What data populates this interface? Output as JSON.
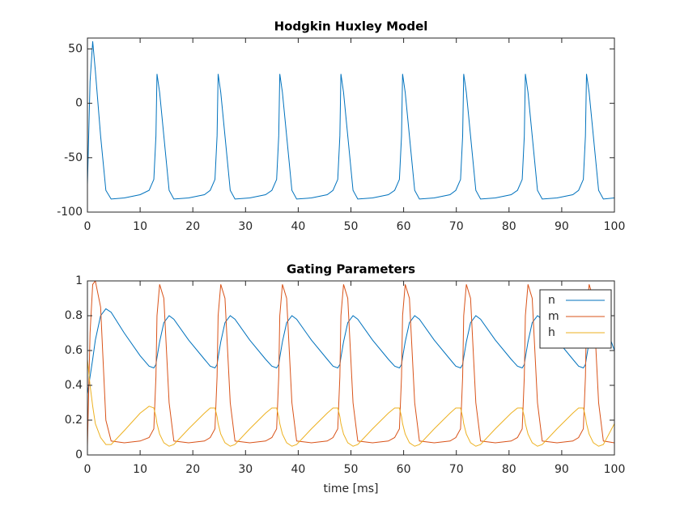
{
  "chart_data": [
    {
      "type": "line",
      "title": "Hodgkin Huxley Model",
      "x": [
        0,
        0.5,
        1,
        1.5,
        2.5,
        3.5,
        4.5,
        7,
        10,
        11.7,
        12.6,
        13.0,
        13.2,
        13.7,
        14.5,
        15.5,
        16.4,
        19.2,
        22.2,
        23.3,
        24.2,
        24.6,
        24.8,
        25.3,
        26.1,
        27.1,
        28.0,
        30.8,
        33.8,
        35.0,
        35.9,
        36.3,
        36.5,
        37.0,
        37.8,
        38.8,
        39.7,
        42.5,
        45.5,
        46.6,
        47.5,
        47.9,
        48.1,
        48.6,
        49.4,
        50.4,
        51.3,
        54.1,
        57.1,
        58.3,
        59.2,
        59.6,
        59.8,
        60.3,
        61.1,
        62.1,
        63.0,
        65.8,
        68.8,
        69.9,
        70.8,
        71.2,
        71.4,
        71.9,
        72.7,
        73.7,
        74.6,
        77.4,
        80.4,
        81.6,
        82.5,
        82.9,
        83.1,
        83.6,
        84.4,
        85.4,
        86.3,
        89.1,
        92.1,
        93.2,
        94.1,
        94.5,
        94.7,
        95.2,
        96.0,
        97.0,
        97.9,
        100
      ],
      "series": [
        {
          "color": "#0072BD",
          "values": [
            -75,
            20,
            57,
            30,
            -30,
            -80,
            -88,
            -87,
            -84,
            -80,
            -70,
            -30,
            27,
            10,
            -30,
            -80,
            -88,
            -87,
            -84,
            -80,
            -70,
            -30,
            27,
            10,
            -30,
            -80,
            -88,
            -87,
            -84,
            -80,
            -70,
            -30,
            27,
            10,
            -30,
            -80,
            -88,
            -87,
            -84,
            -80,
            -70,
            -30,
            27,
            10,
            -30,
            -80,
            -88,
            -87,
            -84,
            -80,
            -70,
            -30,
            27,
            10,
            -30,
            -80,
            -88,
            -87,
            -84,
            -80,
            -70,
            -30,
            27,
            10,
            -30,
            -80,
            -88,
            -87,
            -84,
            -80,
            -70,
            -30,
            27,
            10,
            -30,
            -80,
            -88,
            -87,
            -84,
            -80,
            -70,
            -30,
            27,
            10,
            -30,
            -80,
            -88,
            -87
          ]
        }
      ],
      "xlim": [
        0,
        100
      ],
      "xticks": [
        0,
        10,
        20,
        30,
        40,
        50,
        60,
        70,
        80,
        90,
        100
      ],
      "ylim": [
        -100,
        60
      ],
      "yticks": [
        -100,
        -50,
        0,
        50
      ]
    },
    {
      "type": "line",
      "title": "Gating Parameters",
      "xlabel": "time [ms]",
      "x": [
        0,
        0.5,
        1,
        1.5,
        2.5,
        3.5,
        4.5,
        7,
        10,
        11.7,
        12.6,
        13.0,
        13.2,
        13.7,
        14.5,
        15.5,
        16.4,
        19.2,
        22.2,
        23.3,
        24.2,
        24.6,
        24.8,
        25.3,
        26.1,
        27.1,
        28.0,
        30.8,
        33.8,
        35.0,
        35.9,
        36.3,
        36.5,
        37.0,
        37.8,
        38.8,
        39.7,
        42.5,
        45.5,
        46.6,
        47.5,
        47.9,
        48.1,
        48.6,
        49.4,
        50.4,
        51.3,
        54.1,
        57.1,
        58.3,
        59.2,
        59.6,
        59.8,
        60.3,
        61.1,
        62.1,
        63.0,
        65.8,
        68.8,
        69.9,
        70.8,
        71.2,
        71.4,
        71.9,
        72.7,
        73.7,
        74.6,
        77.4,
        80.4,
        81.6,
        82.5,
        82.9,
        83.1,
        83.6,
        84.4,
        85.4,
        86.3,
        89.1,
        92.1,
        93.2,
        94.1,
        94.5,
        94.7,
        95.2,
        96.0,
        97.0,
        97.9,
        100
      ],
      "series": [
        {
          "name": "n",
          "color": "#0072BD",
          "values": [
            0.35,
            0.45,
            0.55,
            0.66,
            0.8,
            0.84,
            0.82,
            0.7,
            0.57,
            0.51,
            0.5,
            0.52,
            0.56,
            0.65,
            0.76,
            0.8,
            0.78,
            0.66,
            0.55,
            0.51,
            0.5,
            0.52,
            0.56,
            0.65,
            0.76,
            0.8,
            0.78,
            0.66,
            0.55,
            0.51,
            0.5,
            0.52,
            0.56,
            0.65,
            0.76,
            0.8,
            0.78,
            0.66,
            0.55,
            0.51,
            0.5,
            0.52,
            0.56,
            0.65,
            0.76,
            0.8,
            0.78,
            0.66,
            0.55,
            0.51,
            0.5,
            0.52,
            0.56,
            0.65,
            0.76,
            0.8,
            0.78,
            0.66,
            0.55,
            0.51,
            0.5,
            0.52,
            0.56,
            0.65,
            0.76,
            0.8,
            0.78,
            0.66,
            0.55,
            0.51,
            0.5,
            0.52,
            0.56,
            0.65,
            0.76,
            0.8,
            0.78,
            0.66,
            0.55,
            0.51,
            0.5,
            0.52,
            0.56,
            0.65,
            0.76,
            0.8,
            0.78,
            0.6
          ]
        },
        {
          "name": "m",
          "color": "#D95319",
          "values": [
            0.05,
            0.7,
            0.98,
            1.0,
            0.85,
            0.2,
            0.08,
            0.07,
            0.08,
            0.1,
            0.15,
            0.45,
            0.8,
            0.98,
            0.9,
            0.3,
            0.08,
            0.07,
            0.08,
            0.1,
            0.15,
            0.45,
            0.8,
            0.98,
            0.9,
            0.3,
            0.08,
            0.07,
            0.08,
            0.1,
            0.15,
            0.45,
            0.8,
            0.98,
            0.9,
            0.3,
            0.08,
            0.07,
            0.08,
            0.1,
            0.15,
            0.45,
            0.8,
            0.98,
            0.9,
            0.3,
            0.08,
            0.07,
            0.08,
            0.1,
            0.15,
            0.45,
            0.8,
            0.98,
            0.9,
            0.3,
            0.08,
            0.07,
            0.08,
            0.1,
            0.15,
            0.45,
            0.8,
            0.98,
            0.9,
            0.3,
            0.08,
            0.07,
            0.08,
            0.1,
            0.15,
            0.45,
            0.8,
            0.98,
            0.9,
            0.3,
            0.08,
            0.07,
            0.08,
            0.1,
            0.15,
            0.45,
            0.8,
            0.98,
            0.9,
            0.3,
            0.08,
            0.07
          ]
        },
        {
          "name": "h",
          "color": "#EDB120",
          "values": [
            0.55,
            0.4,
            0.28,
            0.18,
            0.1,
            0.06,
            0.06,
            0.14,
            0.24,
            0.28,
            0.27,
            0.22,
            0.18,
            0.12,
            0.07,
            0.05,
            0.06,
            0.15,
            0.24,
            0.27,
            0.27,
            0.22,
            0.18,
            0.12,
            0.07,
            0.05,
            0.06,
            0.15,
            0.24,
            0.27,
            0.27,
            0.22,
            0.18,
            0.12,
            0.07,
            0.05,
            0.06,
            0.15,
            0.24,
            0.27,
            0.27,
            0.22,
            0.18,
            0.12,
            0.07,
            0.05,
            0.06,
            0.15,
            0.24,
            0.27,
            0.27,
            0.22,
            0.18,
            0.12,
            0.07,
            0.05,
            0.06,
            0.15,
            0.24,
            0.27,
            0.27,
            0.22,
            0.18,
            0.12,
            0.07,
            0.05,
            0.06,
            0.15,
            0.24,
            0.27,
            0.27,
            0.22,
            0.18,
            0.12,
            0.07,
            0.05,
            0.06,
            0.15,
            0.24,
            0.27,
            0.27,
            0.22,
            0.18,
            0.12,
            0.07,
            0.05,
            0.06,
            0.18
          ]
        }
      ],
      "xlim": [
        0,
        100
      ],
      "xticks": [
        0,
        10,
        20,
        30,
        40,
        50,
        60,
        70,
        80,
        90,
        100
      ],
      "ylim": [
        0,
        1
      ],
      "yticks": [
        0,
        0.2,
        0.4,
        0.6,
        0.8,
        1
      ],
      "legend": "northeast"
    }
  ]
}
